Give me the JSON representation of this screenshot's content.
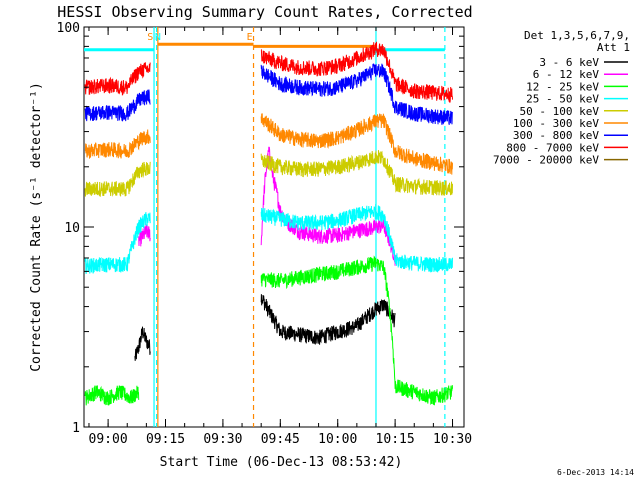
{
  "chart_data": {
    "type": "line",
    "title": "HESSI Observing Summary Count Rates, Corrected",
    "xlabel": "Start Time (06-Dec-13 08:53:42)",
    "ylabel": "Corrected Count Rate (s⁻¹ detector⁻¹)",
    "y_scale": "log",
    "ylim": [
      1,
      100
    ],
    "xlim": [
      "08:53:42",
      "10:33:00"
    ],
    "x_ticks": [
      "09:00",
      "09:15",
      "09:30",
      "09:45",
      "10:00",
      "10:15",
      "10:30"
    ],
    "y_ticks": [
      "1",
      "10",
      "100"
    ],
    "grid": false,
    "legend_placement": "right",
    "legend_header": [
      "Det 1,3,5,6,7,9,",
      "Att 1"
    ],
    "footer_date": "6-Dec-2013 14:14",
    "series": [
      {
        "name": "3 - 6 keV",
        "color": "#000000",
        "segments": [
          {
            "t": [
              "09:07",
              "09:08",
              "09:09",
              "09:10",
              "09:11"
            ],
            "v": [
              2.2,
              2.5,
              3.0,
              2.7,
              2.5
            ]
          },
          {
            "t": [
              "09:40",
              "09:42",
              "09:45",
              "09:50",
              "09:55",
              "10:00",
              "10:05",
              "10:10",
              "10:12",
              "10:15"
            ],
            "v": [
              4.5,
              3.8,
              3.0,
              2.9,
              2.8,
              3.0,
              3.2,
              3.9,
              4.1,
              3.4
            ]
          }
        ]
      },
      {
        "name": "6 - 12 keV",
        "color": "#ff00ff",
        "segments": [
          {
            "t": [
              "09:08",
              "09:09",
              "09:10",
              "09:11"
            ],
            "v": [
              8.5,
              9.0,
              9.5,
              9.2
            ]
          },
          {
            "t": [
              "09:40",
              "09:41",
              "09:42",
              "09:43",
              "09:45",
              "09:47",
              "09:50",
              "09:55",
              "10:00",
              "10:05",
              "10:10",
              "10:12",
              "10:15"
            ],
            "v": [
              8.0,
              17.0,
              24.0,
              18.0,
              12.0,
              10.5,
              9.5,
              9.0,
              9.1,
              9.6,
              10.0,
              10.2,
              7.0
            ]
          }
        ]
      },
      {
        "name": "12 - 25 keV",
        "color": "#00ff00",
        "segments": [
          {
            "t": [
              "08:54",
              "08:57",
              "09:00",
              "09:03",
              "09:06",
              "09:08"
            ],
            "v": [
              1.4,
              1.5,
              1.4,
              1.5,
              1.4,
              1.5
            ]
          },
          {
            "t": [
              "09:40",
              "09:45",
              "09:50",
              "09:55",
              "10:00",
              "10:05",
              "10:10",
              "10:12",
              "10:15",
              "10:20",
              "10:25",
              "10:30"
            ],
            "v": [
              5.5,
              5.4,
              5.6,
              5.8,
              6.0,
              6.3,
              6.6,
              6.3,
              1.6,
              1.5,
              1.4,
              1.5
            ]
          }
        ]
      },
      {
        "name": "25 - 50 keV",
        "color": "#00ffff",
        "segments": [
          {
            "t": [
              "08:54",
              "09:00",
              "09:05",
              "09:08",
              "09:09",
              "09:10",
              "09:11"
            ],
            "v": [
              6.4,
              6.5,
              6.5,
              10.0,
              10.5,
              11.0,
              11.0
            ]
          },
          {
            "t": [
              "09:40",
              "09:45",
              "09:50",
              "09:55",
              "10:00",
              "10:05",
              "10:10",
              "10:12",
              "10:15",
              "10:20",
              "10:25",
              "10:30"
            ],
            "v": [
              11.5,
              11.0,
              10.5,
              10.5,
              10.8,
              11.5,
              12.0,
              11.5,
              6.8,
              6.6,
              6.5,
              6.5
            ]
          }
        ]
      },
      {
        "name": "50 - 100 keV",
        "color": "#cccc00",
        "segments": [
          {
            "t": [
              "08:54",
              "09:00",
              "09:05",
              "09:08",
              "09:09",
              "09:11"
            ],
            "v": [
              15.5,
              15.6,
              15.5,
              19.0,
              19.5,
              19.5
            ]
          },
          {
            "t": [
              "09:40",
              "09:45",
              "09:50",
              "09:55",
              "10:00",
              "10:05",
              "10:10",
              "10:12",
              "10:15",
              "10:20",
              "10:25",
              "10:30"
            ],
            "v": [
              21.5,
              20.0,
              19.5,
              19.5,
              20.0,
              21.0,
              22.5,
              22.0,
              16.5,
              16.0,
              15.8,
              15.6
            ]
          }
        ]
      },
      {
        "name": "100 - 300 keV",
        "color": "#ff8800",
        "segments": [
          {
            "t": [
              "08:54",
              "09:00",
              "09:05",
              "09:08",
              "09:09",
              "09:11"
            ],
            "v": [
              24.0,
              24.5,
              24.0,
              27.0,
              28.0,
              28.5
            ]
          },
          {
            "t": [
              "09:40",
              "09:45",
              "09:50",
              "09:55",
              "10:00",
              "10:05",
              "10:10",
              "10:12",
              "10:15",
              "10:20",
              "10:25",
              "10:30"
            ],
            "v": [
              35.0,
              29.0,
              27.5,
              27.0,
              28.0,
              30.5,
              34.0,
              34.0,
              24.0,
              22.0,
              21.0,
              20.0
            ]
          }
        ]
      },
      {
        "name": "300 - 800 keV",
        "color": "#0000ff",
        "segments": [
          {
            "t": [
              "08:54",
              "09:00",
              "09:05",
              "09:08",
              "09:09",
              "09:11"
            ],
            "v": [
              37.0,
              37.5,
              37.0,
              43.0,
              44.0,
              45.0
            ]
          },
          {
            "t": [
              "09:40",
              "09:45",
              "09:50",
              "09:55",
              "10:00",
              "10:05",
              "10:10",
              "10:12",
              "10:15",
              "10:20",
              "10:25",
              "10:30"
            ],
            "v": [
              60.0,
              52.0,
              50.0,
              49.0,
              50.0,
              54.0,
              61.0,
              60.0,
              40.0,
              37.0,
              36.0,
              35.0
            ]
          }
        ]
      },
      {
        "name": "800 - 7000 keV",
        "color": "#ff0000",
        "segments": [
          {
            "t": [
              "08:54",
              "09:00",
              "09:05",
              "09:08",
              "09:09",
              "09:11"
            ],
            "v": [
              50.0,
              51.0,
              50.0,
              60.0,
              61.0,
              62.0
            ]
          },
          {
            "t": [
              "09:40",
              "09:45",
              "09:50",
              "09:55",
              "10:00",
              "10:05",
              "10:10",
              "10:12",
              "10:15",
              "10:20",
              "10:25",
              "10:30"
            ],
            "v": [
              72.0,
              66.0,
              63.0,
              62.0,
              64.0,
              70.0,
              78.0,
              77.0,
              52.0,
              48.0,
              47.0,
              46.0
            ]
          }
        ]
      },
      {
        "name": "7000 - 20000 keV",
        "color": "#886600",
        "segments": []
      }
    ],
    "markers": {
      "attenuator_bar": {
        "color": "#ff8800",
        "y": 82,
        "start": "09:13",
        "end": "09:38"
      },
      "attenuator_bar_2": {
        "color": "#ff8800",
        "y": 80,
        "start": "09:38",
        "end": "10:10"
      },
      "cyan_bars": {
        "color": "#00ffff",
        "y": 77,
        "intervals": [
          [
            "08:53:42",
            "09:12"
          ],
          [
            "10:10",
            "10:28"
          ]
        ]
      },
      "vertical_lines": [
        {
          "t": "09:12",
          "color": "#00ffff",
          "style": "solid"
        },
        {
          "t": "09:12:40",
          "color": "#00ffff",
          "style": "dashed"
        },
        {
          "t": "09:13",
          "color": "#ff8800",
          "style": "solid"
        },
        {
          "t": "09:38",
          "color": "#ff8800",
          "style": "dashed"
        },
        {
          "t": "10:10",
          "color": "#00ffff",
          "style": "solid"
        },
        {
          "t": "10:28",
          "color": "#00ffff",
          "style": "dashed"
        }
      ],
      "letters": [
        {
          "text": "S",
          "t": "09:11",
          "color": "#ff8800"
        },
        {
          "text": "N",
          "t": "09:13",
          "color": "#00ffff"
        },
        {
          "text": "E",
          "t": "09:37",
          "color": "#ff8800"
        }
      ]
    }
  }
}
